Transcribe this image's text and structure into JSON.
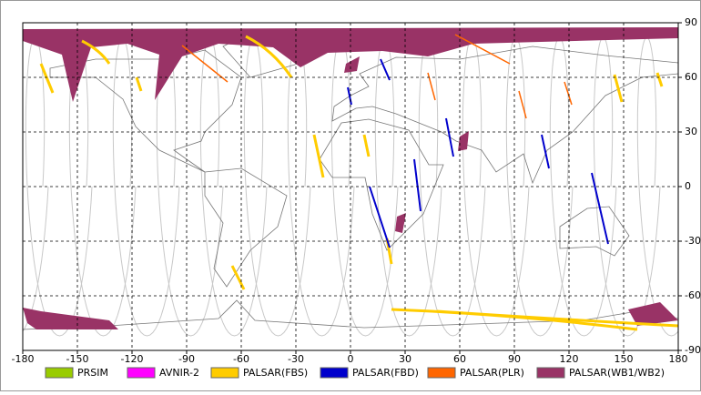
{
  "chart_data": {
    "type": "map",
    "xlim": [
      -180,
      180
    ],
    "ylim": [
      -90,
      90
    ],
    "xticks": [
      -180,
      -150,
      -120,
      -90,
      -60,
      -30,
      0,
      30,
      60,
      90,
      120,
      150,
      180
    ],
    "yticks": [
      90,
      60,
      30,
      0,
      -30,
      -60,
      -90
    ],
    "grid": true,
    "series": [
      {
        "name": "PRSIM",
        "color": "#99cc00"
      },
      {
        "name": "AVNIR-2",
        "color": "#ff00ff"
      },
      {
        "name": "PALSAR(FBS)",
        "color": "#ffcc00"
      },
      {
        "name": "PALSAR(FBD)",
        "color": "#0000cc"
      },
      {
        "name": "PALSAR(PLR)",
        "color": "#ff6600"
      },
      {
        "name": "PALSAR(WB1/WB2)",
        "color": "#993366"
      }
    ]
  }
}
